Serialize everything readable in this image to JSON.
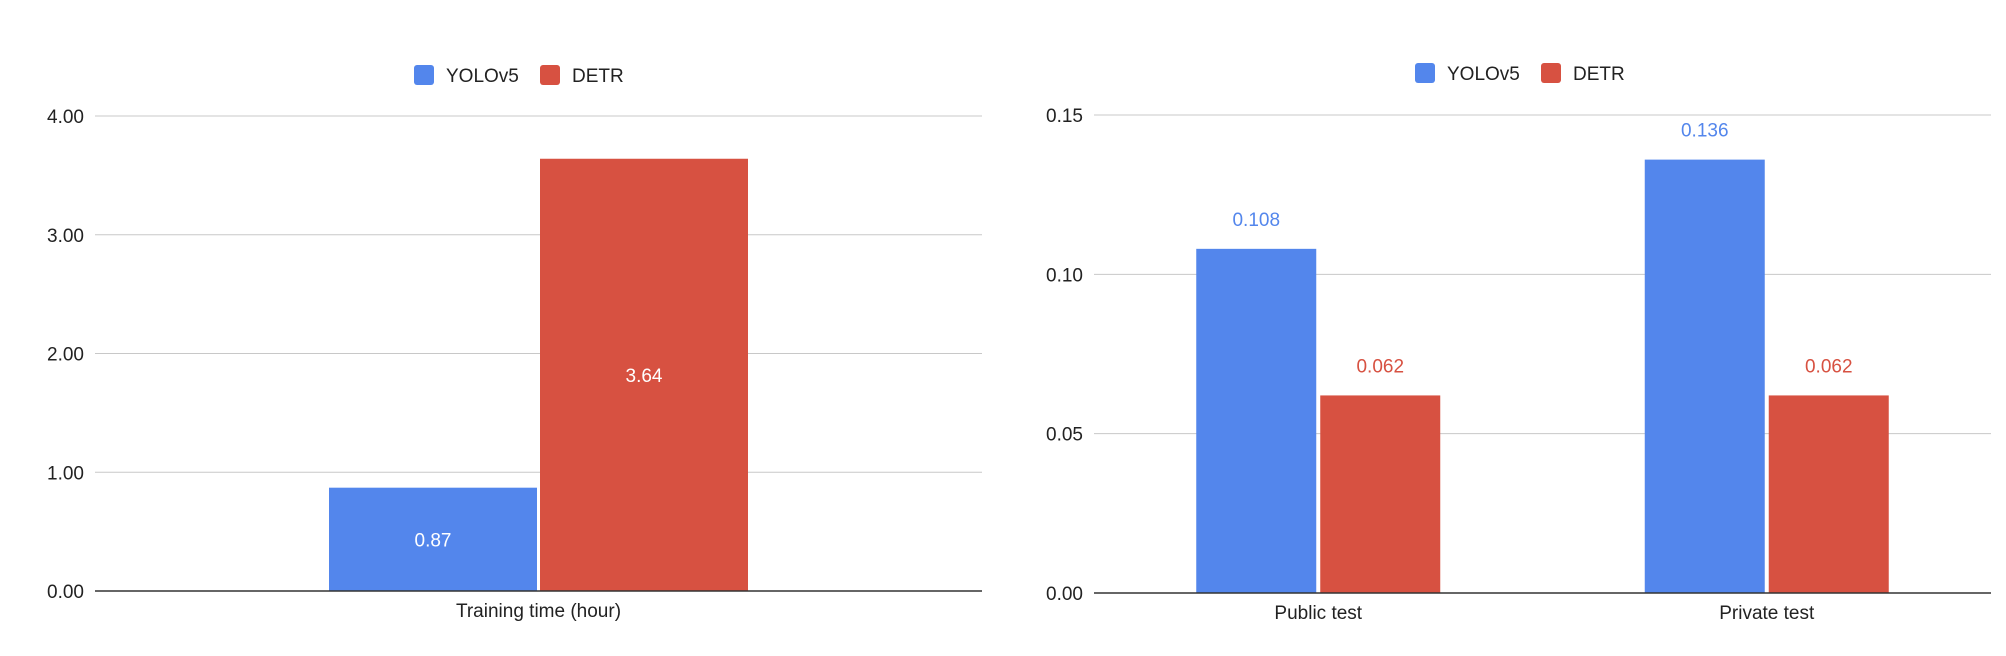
{
  "chart_data": [
    {
      "type": "bar",
      "categories": [
        "Training time (hour)"
      ],
      "series": [
        {
          "name": "YOLOv5",
          "color": "#5386ec",
          "values": [
            0.87
          ],
          "labels": [
            "0.87"
          ]
        },
        {
          "name": "DETR",
          "color": "#d75141",
          "values": [
            3.64
          ],
          "labels": [
            "3.64"
          ]
        }
      ],
      "ylim": [
        0,
        4
      ],
      "yticks": [
        {
          "value": 0,
          "label": "0.00"
        },
        {
          "value": 1,
          "label": "1.00"
        },
        {
          "value": 2,
          "label": "2.00"
        },
        {
          "value": 3,
          "label": "3.00"
        },
        {
          "value": 4,
          "label": "4.00"
        }
      ],
      "title": "",
      "xlabel": "",
      "ylabel": "",
      "grid": true,
      "legend_position": "top",
      "data_label_position": "inside"
    },
    {
      "type": "bar",
      "categories": [
        "Public test",
        "Private test"
      ],
      "series": [
        {
          "name": "YOLOv5",
          "color": "#5386ec",
          "values": [
            0.108,
            0.136
          ],
          "labels": [
            "0.108",
            "0.136"
          ]
        },
        {
          "name": "DETR",
          "color": "#d75141",
          "values": [
            0.062,
            0.062
          ],
          "labels": [
            "0.062",
            "0.062"
          ]
        }
      ],
      "ylim": [
        0,
        0.15
      ],
      "yticks": [
        {
          "value": 0,
          "label": "0.00"
        },
        {
          "value": 0.05,
          "label": "0.05"
        },
        {
          "value": 0.1,
          "label": "0.10"
        },
        {
          "value": 0.15,
          "label": "0.15"
        }
      ],
      "title": "",
      "xlabel": "",
      "ylabel": "",
      "grid": true,
      "legend_position": "top",
      "data_label_position": "above"
    }
  ]
}
